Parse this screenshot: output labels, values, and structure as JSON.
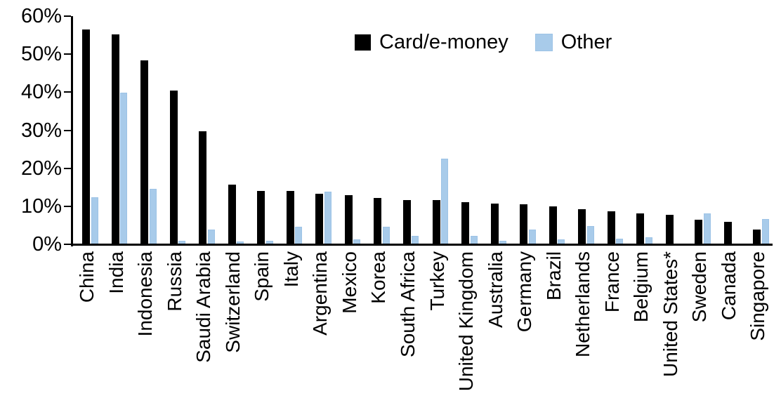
{
  "chart_data": {
    "type": "bar",
    "title": "",
    "xlabel": "",
    "ylabel": "",
    "ylim": [
      0,
      60
    ],
    "ytick_values": [
      0,
      10,
      20,
      30,
      40,
      50,
      60
    ],
    "ytick_suffix": "%",
    "grid": false,
    "legend_position": "top",
    "categories": [
      "China",
      "India",
      "Indonesia",
      "Russia",
      "Saudi Arabia",
      "Switzerland",
      "Spain",
      "Italy",
      "Argentina",
      "Mexico",
      "Korea",
      "South Africa",
      "Turkey",
      "United Kingdom",
      "Australia",
      "Germany",
      "Brazil",
      "Netherlands",
      "France",
      "Belgium",
      "United States*",
      "Sweden",
      "Canada",
      "Singapore"
    ],
    "series": [
      {
        "name": "Card/e-money",
        "color": "#000000",
        "values": [
          56.4,
          55.2,
          48.3,
          40.5,
          29.8,
          15.6,
          14.1,
          14.0,
          13.3,
          12.9,
          12.2,
          11.7,
          11.6,
          11.0,
          10.7,
          10.5,
          10.0,
          9.2,
          8.6,
          8.2,
          7.8,
          6.5,
          5.9,
          3.9
        ]
      },
      {
        "name": "Other",
        "color": "#a8cbea",
        "values": [
          12.3,
          39.8,
          14.5,
          0.9,
          3.9,
          0.7,
          0.9,
          4.6,
          13.8,
          1.3,
          4.6,
          2.3,
          22.5,
          2.3,
          0.9,
          3.9,
          1.2,
          4.8,
          1.4,
          1.9,
          0.2,
          8.1,
          0.0,
          6.6
        ]
      }
    ]
  },
  "legend": {
    "card_label": "Card/e-money",
    "other_label": "Other"
  }
}
